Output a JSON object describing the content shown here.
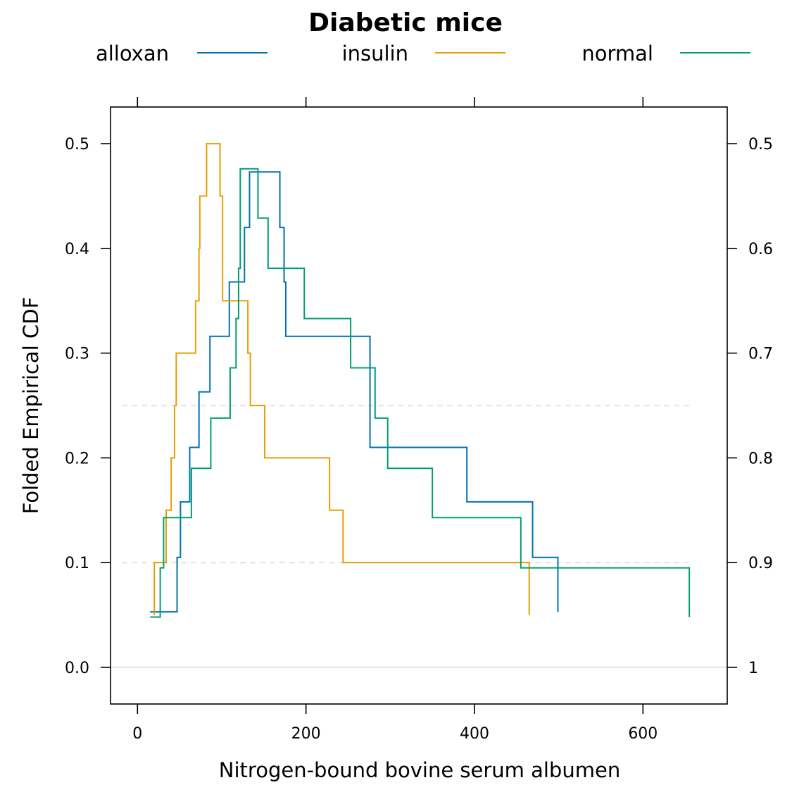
{
  "chart_data": {
    "type": "line",
    "title": "Diabetic mice",
    "xlabel": "Nitrogen-bound bovine serum albumen",
    "ylabel": "Folded Empirical CDF",
    "xlim": [
      -32,
      700
    ],
    "ylim": [
      -0.035,
      0.535
    ],
    "x_ticks": [
      0,
      200,
      400,
      600
    ],
    "y_ticks": [
      0.0,
      0.1,
      0.2,
      0.3,
      0.4,
      0.5
    ],
    "y_tick_labels": [
      "0.0",
      "0.1",
      "0.2",
      "0.3",
      "0.4",
      "0.5"
    ],
    "y2_ticks": [
      0.0,
      0.1,
      0.2,
      0.3,
      0.4,
      0.5
    ],
    "y2_tick_labels": [
      "1",
      "0.9",
      "0.8",
      "0.7",
      "0.6",
      "0.5"
    ],
    "reference_lines": [
      {
        "y": 0.0,
        "style": "solid",
        "color": "#e6e6e6"
      },
      {
        "y": 0.1,
        "style": "dashed",
        "color": "#e6e6e6"
      },
      {
        "y": 0.25,
        "style": "dashed",
        "color": "#e6e6e6"
      }
    ],
    "legend_position": "top",
    "series": [
      {
        "name": "alloxan",
        "color": "#0072B2",
        "points": [
          [
            15,
            0.053
          ],
          [
            47,
            0.053
          ],
          [
            47,
            0.105
          ],
          [
            51,
            0.105
          ],
          [
            51,
            0.158
          ],
          [
            62,
            0.158
          ],
          [
            62,
            0.21
          ],
          [
            73,
            0.21
          ],
          [
            73,
            0.263
          ],
          [
            86,
            0.263
          ],
          [
            86,
            0.316
          ],
          [
            109,
            0.316
          ],
          [
            109,
            0.368
          ],
          [
            127,
            0.368
          ],
          [
            127,
            0.42
          ],
          [
            133,
            0.42
          ],
          [
            133,
            0.473
          ],
          [
            169,
            0.473
          ],
          [
            169,
            0.42
          ],
          [
            174,
            0.42
          ],
          [
            174,
            0.368
          ],
          [
            176,
            0.368
          ],
          [
            176,
            0.316
          ],
          [
            276,
            0.316
          ],
          [
            276,
            0.21
          ],
          [
            391,
            0.21
          ],
          [
            391,
            0.158
          ],
          [
            469,
            0.158
          ],
          [
            469,
            0.105
          ],
          [
            499,
            0.105
          ],
          [
            499,
            0.053
          ]
        ]
      },
      {
        "name": "insulin",
        "color": "#E69F00",
        "points": [
          [
            20,
            0.05
          ],
          [
            20,
            0.1
          ],
          [
            30,
            0.1
          ],
          [
            30,
            0.1
          ],
          [
            34,
            0.1
          ],
          [
            34,
            0.15
          ],
          [
            40,
            0.15
          ],
          [
            40,
            0.2
          ],
          [
            44,
            0.2
          ],
          [
            44,
            0.25
          ],
          [
            46,
            0.25
          ],
          [
            46,
            0.3
          ],
          [
            69,
            0.3
          ],
          [
            69,
            0.35
          ],
          [
            73,
            0.35
          ],
          [
            73,
            0.4
          ],
          [
            74,
            0.4
          ],
          [
            74,
            0.45
          ],
          [
            82,
            0.45
          ],
          [
            82,
            0.5
          ],
          [
            98,
            0.5
          ],
          [
            98,
            0.45
          ],
          [
            101,
            0.45
          ],
          [
            101,
            0.35
          ],
          [
            131,
            0.35
          ],
          [
            131,
            0.3
          ],
          [
            134,
            0.3
          ],
          [
            134,
            0.25
          ],
          [
            151,
            0.25
          ],
          [
            151,
            0.2
          ],
          [
            228,
            0.2
          ],
          [
            228,
            0.15
          ],
          [
            244,
            0.15
          ],
          [
            244,
            0.1
          ],
          [
            465,
            0.1
          ],
          [
            465,
            0.05
          ]
        ]
      },
      {
        "name": "normal",
        "color": "#009E73",
        "points": [
          [
            15,
            0.048
          ],
          [
            27,
            0.048
          ],
          [
            27,
            0.095
          ],
          [
            31,
            0.095
          ],
          [
            31,
            0.143
          ],
          [
            64,
            0.143
          ],
          [
            64,
            0.19
          ],
          [
            87,
            0.19
          ],
          [
            87,
            0.238
          ],
          [
            110,
            0.238
          ],
          [
            110,
            0.286
          ],
          [
            117,
            0.286
          ],
          [
            117,
            0.333
          ],
          [
            120,
            0.333
          ],
          [
            120,
            0.381
          ],
          [
            122,
            0.381
          ],
          [
            122,
            0.476
          ],
          [
            143,
            0.476
          ],
          [
            143,
            0.429
          ],
          [
            155,
            0.429
          ],
          [
            155,
            0.381
          ],
          [
            198,
            0.381
          ],
          [
            198,
            0.333
          ],
          [
            253,
            0.333
          ],
          [
            253,
            0.286
          ],
          [
            282,
            0.286
          ],
          [
            282,
            0.238
          ],
          [
            297,
            0.238
          ],
          [
            297,
            0.19
          ],
          [
            350,
            0.19
          ],
          [
            350,
            0.143
          ],
          [
            455,
            0.143
          ],
          [
            455,
            0.095
          ],
          [
            655,
            0.095
          ],
          [
            655,
            0.048
          ]
        ]
      }
    ]
  }
}
